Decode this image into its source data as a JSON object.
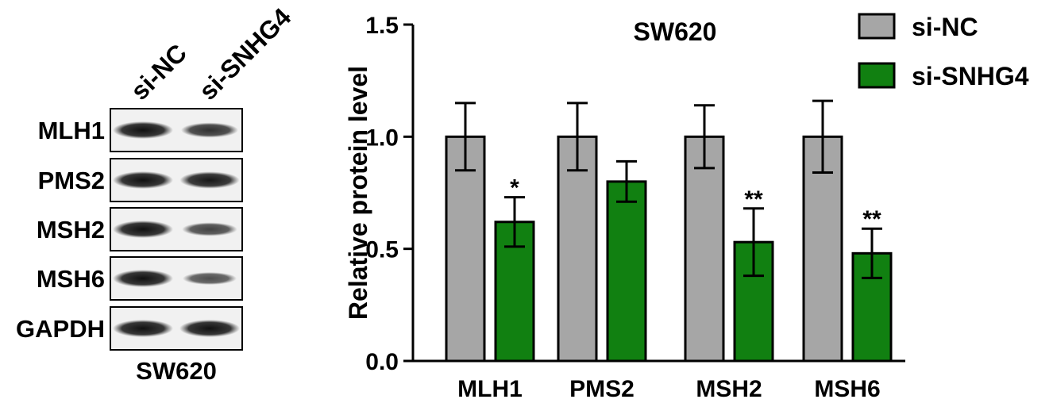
{
  "blot": {
    "cell_line": "SW620",
    "lanes": [
      "si-NC",
      "si-SNHG4"
    ],
    "rows": [
      "MLH1",
      "PMS2",
      "MSH2",
      "MSH6",
      "GAPDH"
    ],
    "band_intensity": [
      [
        1.0,
        0.75
      ],
      [
        1.0,
        0.95
      ],
      [
        1.0,
        0.6
      ],
      [
        1.0,
        0.5
      ],
      [
        1.0,
        1.0
      ]
    ]
  },
  "chart_data": {
    "type": "bar",
    "title": "SW620",
    "xlabel": "",
    "ylabel": "Relative protein level",
    "categories": [
      "MLH1",
      "PMS2",
      "MSH2",
      "MSH6"
    ],
    "series": [
      {
        "name": "si-NC",
        "color": "#a6a6a6",
        "values": [
          1.0,
          1.0,
          1.0,
          1.0
        ],
        "errors": [
          0.15,
          0.15,
          0.14,
          0.16
        ]
      },
      {
        "name": "si-SNHG4",
        "color": "#118011",
        "values": [
          0.62,
          0.8,
          0.53,
          0.48
        ],
        "errors": [
          0.11,
          0.09,
          0.15,
          0.11
        ]
      }
    ],
    "significance": [
      "*",
      "",
      "**",
      "**"
    ],
    "ylim": [
      0,
      1.5
    ],
    "yticks": [
      "0.0",
      "0.5",
      "1.0",
      "1.5"
    ],
    "legend_position": "top-right",
    "grid": false
  }
}
